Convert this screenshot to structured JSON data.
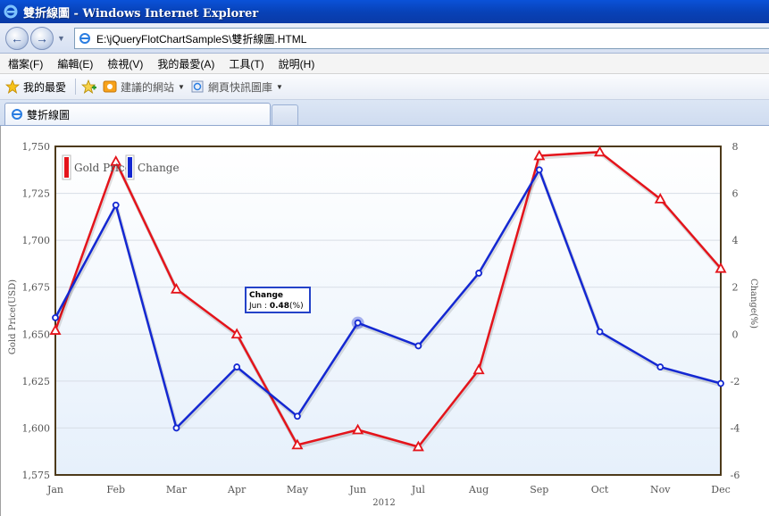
{
  "window": {
    "title": "雙折線圖 - Windows Internet Explorer",
    "url": "E:\\jQueryFlotChartSampleS\\雙折線圖.HTML"
  },
  "menu": [
    "檔案(F)",
    "編輯(E)",
    "檢視(V)",
    "我的最愛(A)",
    "工具(T)",
    "說明(H)"
  ],
  "favorites": {
    "label": "我的最愛",
    "suggested_sites": "建議的網站",
    "web_slice": "網頁快訊圖庫"
  },
  "tab": {
    "label": "雙折線圖"
  },
  "tooltip": {
    "title": "Change",
    "month": "Jun",
    "value": "0.48",
    "unit": "(%)"
  },
  "chart_data": {
    "type": "line",
    "categories": [
      "Jan",
      "Feb",
      "Mar",
      "Apr",
      "May",
      "Jun",
      "Jul",
      "Aug",
      "Sep",
      "Oct",
      "Nov",
      "Dec"
    ],
    "xlabel": "2012",
    "ylabel": "Gold Price(USD)",
    "y2label": "Change(%)",
    "ylim": [
      1575,
      1750
    ],
    "y2lim": [
      -6,
      8
    ],
    "yticks": [
      "1,575",
      "1,600",
      "1,625",
      "1,650",
      "1,675",
      "1,700",
      "1,725",
      "1,750"
    ],
    "y2ticks": [
      "-6",
      "-4",
      "-2",
      "0",
      "2",
      "4",
      "6",
      "8"
    ],
    "legend_position": "top-left",
    "grid": true,
    "series": [
      {
        "name": "Gold Price",
        "color": "#e4141b",
        "axis": "left",
        "marker": "triangle",
        "values": [
          1652,
          1742,
          1674,
          1650,
          1591,
          1599,
          1590,
          1631,
          1745,
          1747,
          1722,
          1685
        ]
      },
      {
        "name": "Change",
        "color": "#1428d2",
        "axis": "right",
        "marker": "circle",
        "values": [
          0.7,
          5.5,
          -4.0,
          -1.4,
          -3.5,
          0.48,
          -0.5,
          2.6,
          7.0,
          0.1,
          -1.4,
          -2.1
        ]
      }
    ],
    "highlight": {
      "series": "Change",
      "index": 5
    }
  }
}
